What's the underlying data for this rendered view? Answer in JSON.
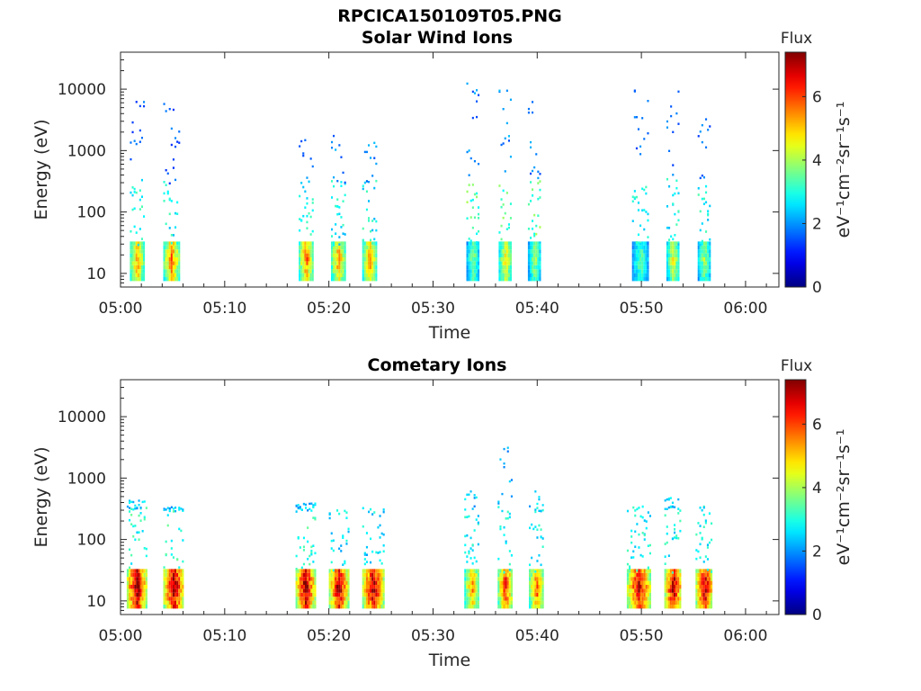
{
  "figure": {
    "title": "RPCICA150109T05.PNG"
  },
  "chart_data": [
    {
      "type": "heatmap",
      "title": "Solar Wind Ions",
      "xlabel": "Time",
      "ylabel": "Energy (eV)",
      "x_ticklabels": [
        "05:00",
        "05:10",
        "05:20",
        "05:30",
        "05:40",
        "05:50",
        "06:00"
      ],
      "x_ticks_minutes": [
        0,
        10,
        20,
        30,
        40,
        50,
        60
      ],
      "xlim_minutes": [
        0,
        63.2
      ],
      "y_scale": "log",
      "ylim": [
        6,
        40000
      ],
      "y_ticklabels": [
        "10",
        "100",
        "1000",
        "10000"
      ],
      "y_ticks": [
        10,
        100,
        1000,
        10000
      ],
      "colorbar": {
        "label": "Flux",
        "unit": "eV⁻¹cm⁻²sr⁻¹s⁻¹",
        "ticklabels": [
          "0",
          "2",
          "4",
          "6"
        ],
        "ticks": [
          0,
          2,
          4,
          6
        ],
        "range": [
          0,
          7.4
        ],
        "colormap": "jet"
      },
      "bursts": [
        {
          "start_min": 0.9,
          "end_min": 2.2,
          "low_peak": 5.2,
          "mid_level": 2.8,
          "high_level": 1.5,
          "high_max_eV": 8000
        },
        {
          "start_min": 4.1,
          "end_min": 5.6,
          "low_peak": 5.4,
          "mid_level": 2.8,
          "high_level": 1.5,
          "high_max_eV": 8000
        },
        {
          "start_min": 17.1,
          "end_min": 18.4,
          "low_peak": 5.4,
          "mid_level": 2.8,
          "high_level": 1.8,
          "high_max_eV": 2000
        },
        {
          "start_min": 20.2,
          "end_min": 21.5,
          "low_peak": 5.2,
          "mid_level": 2.8,
          "high_level": 1.8,
          "high_max_eV": 2500
        },
        {
          "start_min": 23.2,
          "end_min": 24.5,
          "low_peak": 5.2,
          "mid_level": 2.8,
          "high_level": 1.8,
          "high_max_eV": 4000
        },
        {
          "start_min": 33.2,
          "end_min": 34.4,
          "low_peak": 3.6,
          "mid_level": 3.4,
          "high_level": 1.8,
          "high_max_eV": 15000
        },
        {
          "start_min": 36.3,
          "end_min": 37.5,
          "low_peak": 4.6,
          "mid_level": 3.4,
          "high_level": 1.8,
          "high_max_eV": 10000
        },
        {
          "start_min": 39.1,
          "end_min": 40.3,
          "low_peak": 3.8,
          "mid_level": 3.4,
          "high_level": 1.8,
          "high_max_eV": 10000
        },
        {
          "start_min": 49.1,
          "end_min": 50.6,
          "low_peak": 3.4,
          "mid_level": 2.8,
          "high_level": 1.6,
          "high_max_eV": 12000
        },
        {
          "start_min": 52.4,
          "end_min": 53.6,
          "low_peak": 4.4,
          "mid_level": 2.8,
          "high_level": 1.6,
          "high_max_eV": 12000
        },
        {
          "start_min": 55.4,
          "end_min": 56.6,
          "low_peak": 3.8,
          "mid_level": 2.8,
          "high_level": 1.6,
          "high_max_eV": 4000
        }
      ]
    },
    {
      "type": "heatmap",
      "title": "Cometary Ions",
      "xlabel": "Time",
      "ylabel": "Energy (eV)",
      "x_ticklabels": [
        "05:00",
        "05:10",
        "05:20",
        "05:30",
        "05:40",
        "05:50",
        "06:00"
      ],
      "x_ticks_minutes": [
        0,
        10,
        20,
        30,
        40,
        50,
        60
      ],
      "xlim_minutes": [
        0,
        63.2
      ],
      "y_scale": "log",
      "ylim": [
        6,
        40000
      ],
      "y_ticklabels": [
        "10",
        "100",
        "1000",
        "10000"
      ],
      "y_ticks": [
        10,
        100,
        1000,
        10000
      ],
      "colorbar": {
        "label": "Flux",
        "unit": "eV⁻¹cm⁻²sr⁻¹s⁻¹",
        "ticklabels": [
          "0",
          "2",
          "4",
          "6"
        ],
        "ticks": [
          0,
          2,
          4,
          6
        ],
        "range": [
          0,
          7.4
        ],
        "colormap": "jet"
      },
      "bursts": [
        {
          "start_min": 0.6,
          "end_min": 2.4,
          "low_peak": 7.0,
          "mid_level": 3.0,
          "high_level": 2.2,
          "high_max_eV": 450
        },
        {
          "start_min": 4.1,
          "end_min": 6.0,
          "low_peak": 7.0,
          "mid_level": 3.0,
          "high_level": 2.2,
          "high_max_eV": 350
        },
        {
          "start_min": 16.8,
          "end_min": 18.6,
          "low_peak": 7.0,
          "mid_level": 3.0,
          "high_level": 2.2,
          "high_max_eV": 420
        },
        {
          "start_min": 20.0,
          "end_min": 21.8,
          "low_peak": 6.8,
          "mid_level": 2.6,
          "high_level": 2.2,
          "high_max_eV": 250
        },
        {
          "start_min": 23.2,
          "end_min": 25.2,
          "low_peak": 6.8,
          "mid_level": 2.6,
          "high_level": 2.2,
          "high_max_eV": 250
        },
        {
          "start_min": 33.0,
          "end_min": 34.4,
          "low_peak": 5.2,
          "mid_level": 2.8,
          "high_level": 2.2,
          "high_max_eV": 700
        },
        {
          "start_min": 36.2,
          "end_min": 37.6,
          "low_peak": 6.0,
          "mid_level": 2.8,
          "high_level": 2.2,
          "high_max_eV": 3300
        },
        {
          "start_min": 39.2,
          "end_min": 40.6,
          "low_peak": 5.6,
          "mid_level": 2.8,
          "high_level": 2.2,
          "high_max_eV": 700
        },
        {
          "start_min": 48.6,
          "end_min": 50.8,
          "low_peak": 6.6,
          "mid_level": 2.8,
          "high_level": 2.2,
          "high_max_eV": 300
        },
        {
          "start_min": 52.2,
          "end_min": 53.8,
          "low_peak": 6.8,
          "mid_level": 2.8,
          "high_level": 2.2,
          "high_max_eV": 550
        },
        {
          "start_min": 55.2,
          "end_min": 56.8,
          "low_peak": 6.8,
          "mid_level": 2.8,
          "high_level": 2.2,
          "high_max_eV": 250
        }
      ]
    }
  ]
}
